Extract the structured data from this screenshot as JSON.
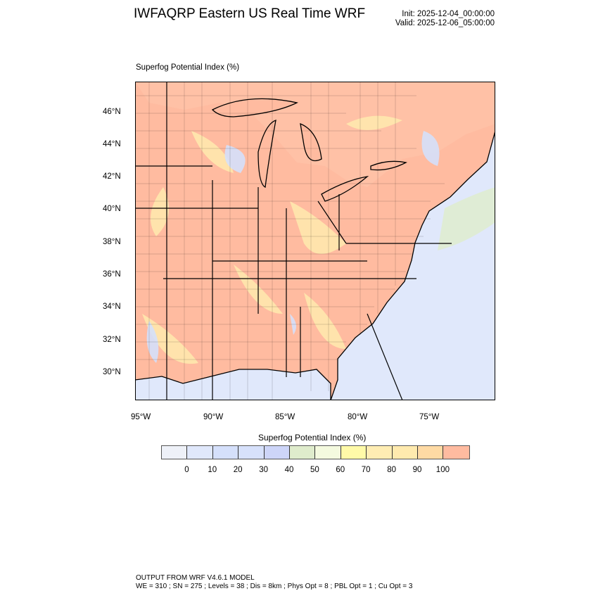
{
  "header": {
    "title": "IWFAQRP Eastern US Real Time WRF",
    "init": "Init: 2025-12-04_00:00:00",
    "valid": "Valid: 2025-12-06_05:00:00"
  },
  "map": {
    "subtitle": "Superfog Potential Index   (%)",
    "lat_labels": [
      "46°N",
      "44°N",
      "42°N",
      "40°N",
      "38°N",
      "36°N",
      "34°N",
      "32°N",
      "30°N"
    ],
    "lon_labels": [
      "95°W",
      "90°W",
      "85°W",
      "80°W",
      "75°W"
    ],
    "colors": {
      "land_high": "#ffbba0",
      "land_mid": "#ffeaae",
      "water": "#e0e8fb",
      "border": "#000000"
    }
  },
  "colorbar": {
    "title": "Superfog Potential Index  (%)",
    "labels": [
      "0",
      "10",
      "20",
      "30",
      "40",
      "50",
      "60",
      "70",
      "80",
      "90",
      "100"
    ],
    "colors": [
      "#eef1f8",
      "#e0e8fb",
      "#d5e0fb",
      "#d7e1fb",
      "#cdd5f8",
      "#dfeccc",
      "#f4fadf",
      "#fffaa8",
      "#ffedb3",
      "#ffeaae",
      "#fedaa4",
      "#ffbba0"
    ]
  },
  "footer": {
    "line1": "OUTPUT FROM WRF V4.6.1 MODEL",
    "line2": "WE = 310 ; SN = 275 ; Levels = 38 ; Dis = 8km ; Phys Opt = 8 ; PBL Opt = 1 ; Cu Opt = 3"
  }
}
